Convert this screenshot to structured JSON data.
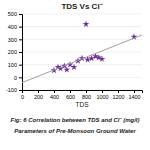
{
  "chart_data": {
    "type": "scatter",
    "title": "TDS Vs Cl⁻",
    "xlabel": "TDS",
    "annotations": [
      "Fig: 6 Correlation between TDS and Cl⁻ (mg/l)",
      "Parameters of Pre-Monsoon Ground Water"
    ],
    "series": [
      {
        "type": "scatter",
        "color": "#7030A0",
        "marker": "star",
        "x": [
          400,
          450,
          480,
          530,
          560,
          600,
          650,
          700,
          750,
          800,
          820,
          870,
          920,
          960,
          1000,
          1400
        ],
        "values": [
          55,
          80,
          70,
          90,
          60,
          100,
          80,
          130,
          150,
          420,
          140,
          150,
          165,
          155,
          145,
          320
        ]
      },
      {
        "type": "line",
        "color": "#a0a0a0",
        "x": [
          0,
          1500
        ],
        "values": [
          -41.93,
          334.13
        ]
      }
    ],
    "xlim": [
      0,
      1500
    ],
    "ylim": [
      -100,
      500
    ],
    "xticks": [
      0,
      200,
      400,
      600,
      800,
      1000,
      1200,
      1400
    ],
    "yticks": [
      -100,
      0,
      100,
      200,
      300,
      400,
      500
    ],
    "grid": true
  }
}
